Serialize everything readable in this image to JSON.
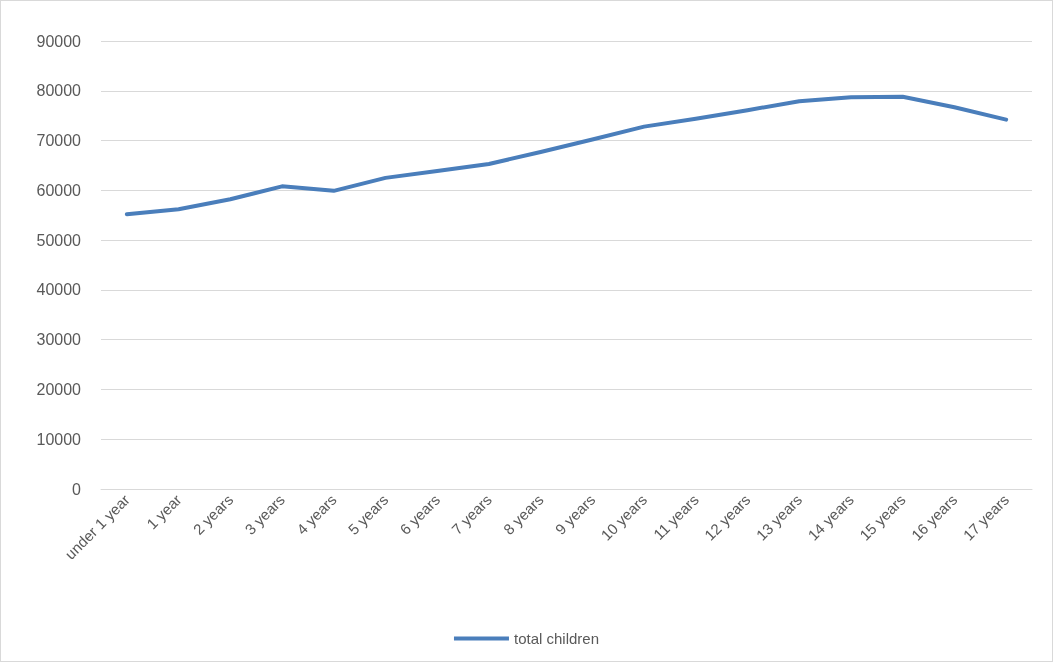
{
  "chart_data": {
    "type": "line",
    "categories": [
      "under 1 year",
      "1 year",
      "2 years",
      "3 years",
      "4 years",
      "5 years",
      "6 years",
      "7 years",
      "8 years",
      "9 years",
      "10 years",
      "11 years",
      "12 years",
      "13 years",
      "14 years",
      "15 years",
      "16 years",
      "17 years"
    ],
    "series": [
      {
        "name": "total children",
        "color": "#4a7ebb",
        "values": [
          55200,
          56200,
          58200,
          60800,
          59900,
          62500,
          63900,
          65300,
          67700,
          70200,
          72800,
          74400,
          76100,
          77900,
          78700,
          78800,
          76700,
          74200
        ]
      }
    ],
    "ylim": [
      0,
      90000
    ],
    "yticks": [
      0,
      10000,
      20000,
      30000,
      40000,
      50000,
      60000,
      70000,
      80000,
      90000
    ],
    "grid": "y",
    "legend": "bottom",
    "marker": "none",
    "line_style": "solid"
  }
}
